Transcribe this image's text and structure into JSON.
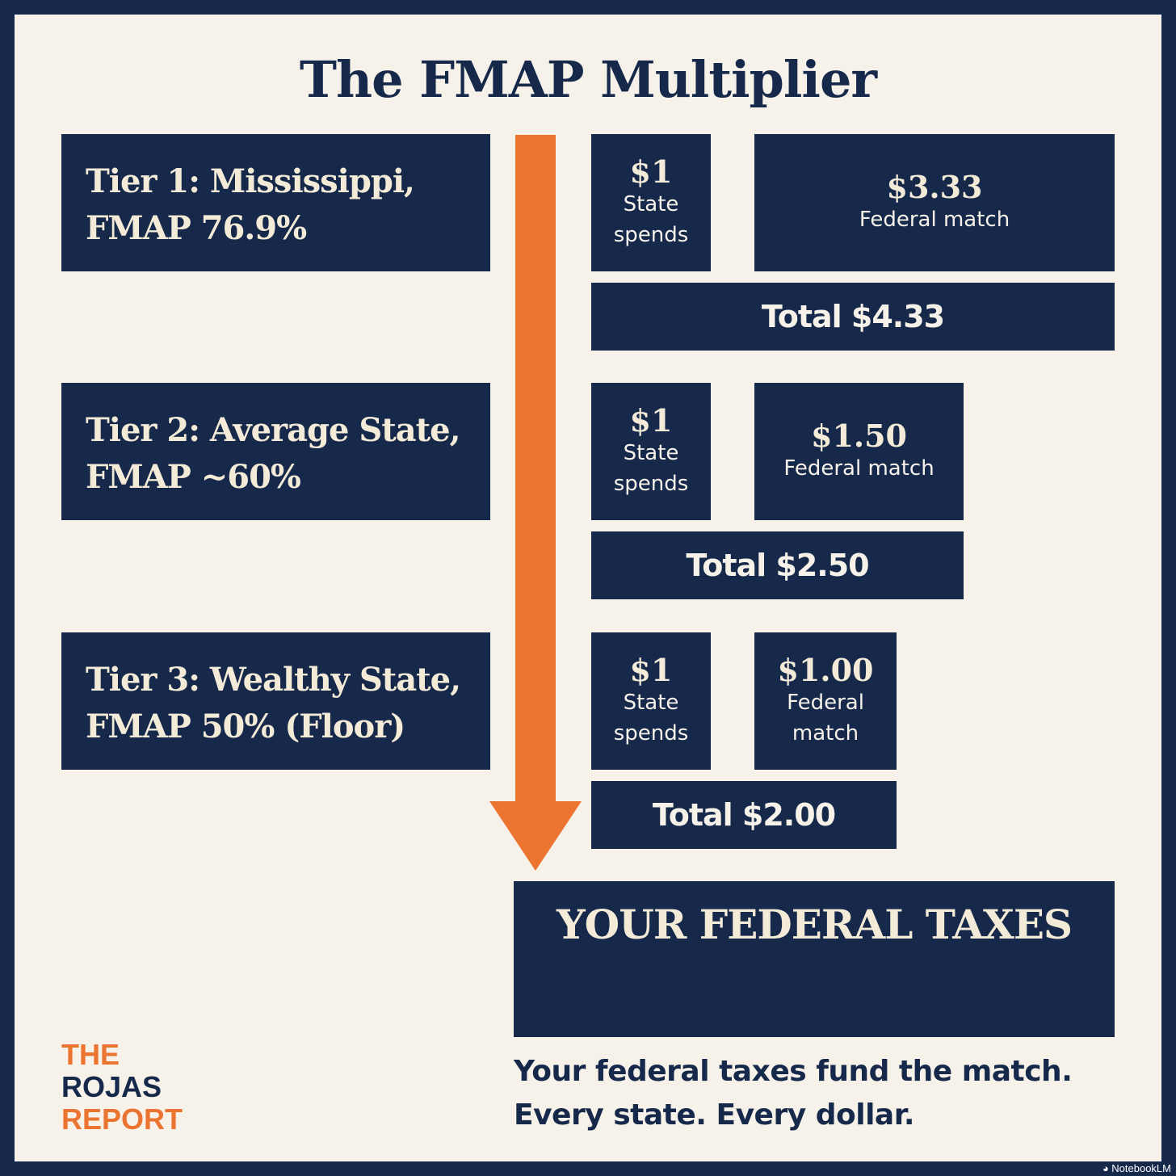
{
  "title": "The FMAP Multiplier",
  "tiers": [
    {
      "line1": "Tier 1: Mississippi,",
      "line2": "FMAP 76.9%",
      "state_amount": "$1",
      "state_label_1": "State",
      "state_label_2": "spends",
      "federal_amount": "$3.33",
      "federal_label_1": "Federal match",
      "federal_label_2": "",
      "total": "Total $4.33"
    },
    {
      "line1": "Tier 2: Average State,",
      "line2": "FMAP ~60%",
      "state_amount": "$1",
      "state_label_1": "State",
      "state_label_2": "spends",
      "federal_amount": "$1.50",
      "federal_label_1": "Federal match",
      "federal_label_2": "",
      "total": "Total $2.50"
    },
    {
      "line1": "Tier 3: Wealthy State,",
      "line2": "FMAP 50% (Floor)",
      "state_amount": "$1",
      "state_label_1": "State",
      "state_label_2": "spends",
      "federal_amount": "$1.00",
      "federal_label_1": "Federal",
      "federal_label_2": "match",
      "total": "Total $2.00"
    }
  ],
  "taxes_box": "YOUR FEDERAL TAXES",
  "tagline": {
    "line1": "Your federal taxes fund the match.",
    "line2": "Every state. Every dollar."
  },
  "logo": {
    "line1": "THE",
    "line2": "ROJAS",
    "line3": "REPORT"
  },
  "credit": "NotebookLM",
  "colors": {
    "navy": "#16294a",
    "cream": "#f6f2ea",
    "orange": "#ec7431"
  }
}
